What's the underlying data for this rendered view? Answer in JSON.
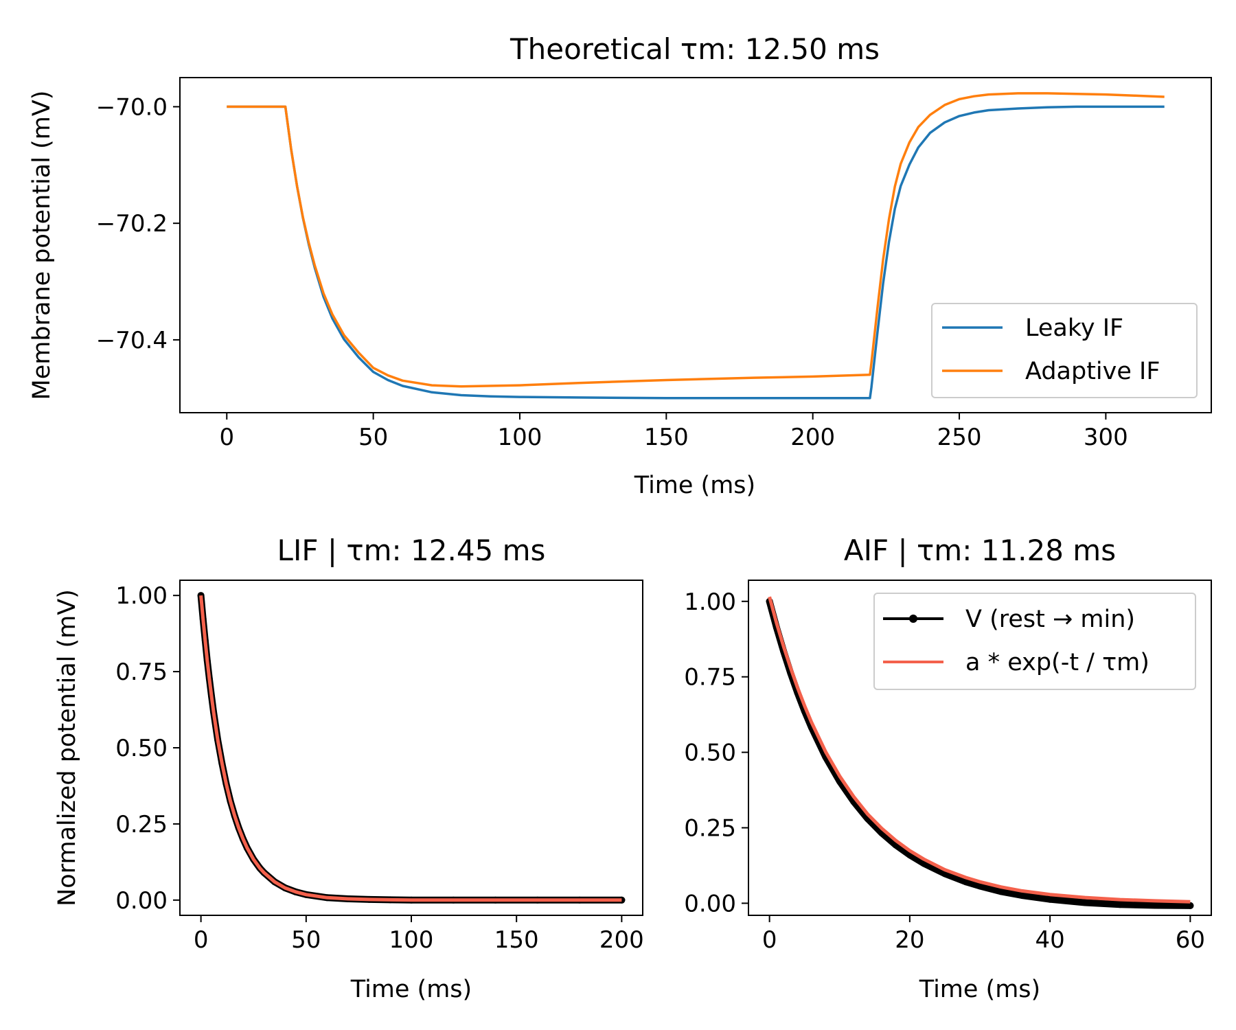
{
  "colors": {
    "lif": "#1f77b4",
    "aif": "#ff7f0e",
    "v_data": "#000000",
    "fit": "#f4614c"
  },
  "chart_data": [
    {
      "type": "line",
      "title": "Theoretical τm: 12.50 ms",
      "xlabel": "Time (ms)",
      "ylabel": "Membrane potential (mV)",
      "xlim": [
        -16,
        336
      ],
      "ylim": [
        -70.525,
        -69.95
      ],
      "xticks": [
        0,
        50,
        100,
        150,
        200,
        250,
        300
      ],
      "xtick_labels": [
        "0",
        "50",
        "100",
        "150",
        "200",
        "250",
        "300"
      ],
      "yticks": [
        -70.0,
        -70.2,
        -70.4
      ],
      "ytick_labels": [
        "−70.0",
        "−70.2",
        "−70.4"
      ],
      "grid": false,
      "legend": "lower-right",
      "series": [
        {
          "name": "Leaky IF",
          "color": "#1f77b4",
          "x": [
            0,
            20,
            22,
            24,
            26,
            28,
            30,
            33,
            36,
            40,
            45,
            50,
            55,
            60,
            70,
            80,
            90,
            100,
            120,
            150,
            180,
            200,
            219.5,
            220,
            222,
            224,
            226,
            228,
            230,
            233,
            236,
            240,
            245,
            250,
            255,
            260,
            270,
            280,
            290,
            300,
            320
          ],
          "values": [
            -70.0,
            -70.0,
            -70.074,
            -70.137,
            -70.191,
            -70.237,
            -70.276,
            -70.326,
            -70.363,
            -70.399,
            -70.43,
            -70.455,
            -70.469,
            -70.479,
            -70.49,
            -70.495,
            -70.497,
            -70.498,
            -70.499,
            -70.5,
            -70.5,
            -70.5,
            -70.5,
            -70.482,
            -70.39,
            -70.303,
            -70.232,
            -70.175,
            -70.136,
            -70.099,
            -70.07,
            -70.045,
            -70.027,
            -70.016,
            -70.01,
            -70.006,
            -70.003,
            -70.001,
            -70.0,
            -70.0,
            -70.0
          ]
        },
        {
          "name": "Adaptive IF",
          "color": "#ff7f0e",
          "x": [
            0,
            20,
            22,
            24,
            26,
            28,
            30,
            33,
            36,
            40,
            45,
            50,
            55,
            60,
            70,
            80,
            100,
            120,
            150,
            180,
            200,
            219.5,
            220,
            222,
            224,
            226,
            228,
            230,
            233,
            236,
            240,
            245,
            250,
            255,
            260,
            270,
            280,
            290,
            300,
            310,
            320
          ],
          "values": [
            -70.0,
            -70.0,
            -70.074,
            -70.137,
            -70.19,
            -70.234,
            -70.272,
            -70.32,
            -70.356,
            -70.392,
            -70.422,
            -70.448,
            -70.461,
            -70.47,
            -70.478,
            -70.48,
            -70.478,
            -70.474,
            -70.469,
            -70.465,
            -70.463,
            -70.46,
            -70.44,
            -70.348,
            -70.262,
            -70.193,
            -70.137,
            -70.098,
            -70.061,
            -70.035,
            -70.014,
            -69.997,
            -69.987,
            -69.982,
            -69.979,
            -69.977,
            -69.977,
            -69.978,
            -69.979,
            -69.981,
            -69.983
          ]
        }
      ]
    },
    {
      "type": "line",
      "title": "LIF | τm: 12.45 ms",
      "xlabel": "Time (ms)",
      "ylabel": "Normalized potential (mV)",
      "xlim": [
        -10,
        210
      ],
      "ylim": [
        -0.05,
        1.05
      ],
      "xticks": [
        0,
        50,
        100,
        150,
        200
      ],
      "xtick_labels": [
        "0",
        "50",
        "100",
        "150",
        "200"
      ],
      "yticks": [
        1.0,
        0.75,
        0.5,
        0.25,
        0.0
      ],
      "ytick_labels": [
        "1.00",
        "0.75",
        "0.50",
        "0.25",
        "0.00"
      ],
      "grid": false,
      "series": [
        {
          "name": "V (rest → min)",
          "color": "#000000",
          "marker": "dot",
          "x": [
            0,
            1,
            2,
            3,
            4,
            5,
            6,
            8,
            10,
            12,
            14,
            16,
            18,
            20,
            22,
            25,
            28,
            30,
            35,
            40,
            45,
            50,
            60,
            70,
            80,
            90,
            100,
            120,
            140,
            160,
            180,
            200
          ],
          "values": [
            1.0,
            0.923,
            0.852,
            0.786,
            0.726,
            0.67,
            0.618,
            0.526,
            0.449,
            0.382,
            0.325,
            0.277,
            0.236,
            0.201,
            0.171,
            0.134,
            0.105,
            0.09,
            0.06,
            0.04,
            0.027,
            0.018,
            0.008,
            0.004,
            0.002,
            0.001,
            0.0,
            0.0,
            0.0,
            0.0,
            0.0,
            0.0
          ]
        },
        {
          "name": "a * exp(-t / τm)",
          "color": "#f4614c",
          "x": [
            0,
            1,
            2,
            3,
            4,
            5,
            6,
            8,
            10,
            12,
            14,
            16,
            18,
            20,
            22,
            25,
            28,
            30,
            35,
            40,
            45,
            50,
            60,
            70,
            80,
            90,
            100,
            120,
            140,
            160,
            180,
            200
          ],
          "values": [
            1.0,
            0.923,
            0.852,
            0.786,
            0.726,
            0.67,
            0.618,
            0.526,
            0.449,
            0.382,
            0.325,
            0.277,
            0.236,
            0.201,
            0.171,
            0.134,
            0.105,
            0.09,
            0.06,
            0.04,
            0.027,
            0.018,
            0.008,
            0.004,
            0.002,
            0.001,
            0.0,
            0.0,
            0.0,
            0.0,
            0.0,
            0.0
          ]
        }
      ]
    },
    {
      "type": "line",
      "title": "AIF | τm: 11.28 ms",
      "xlabel": "Time (ms)",
      "ylabel": "",
      "xlim": [
        -3,
        63
      ],
      "ylim": [
        -0.04,
        1.07
      ],
      "xticks": [
        0,
        20,
        40,
        60
      ],
      "xtick_labels": [
        "0",
        "20",
        "40",
        "60"
      ],
      "yticks": [
        1.0,
        0.75,
        0.5,
        0.25,
        0.0
      ],
      "ytick_labels": [
        "1.00",
        "0.75",
        "0.50",
        "0.25",
        "0.00"
      ],
      "grid": false,
      "legend": "upper-right",
      "series": [
        {
          "name": "V (rest → min)",
          "color": "#000000",
          "marker": "dot",
          "x": [
            0,
            1,
            2,
            3,
            4,
            5,
            6,
            8,
            10,
            12,
            14,
            16,
            18,
            20,
            22,
            25,
            28,
            30,
            33,
            36,
            40,
            45,
            50,
            55,
            60
          ],
          "values": [
            1.0,
            0.914,
            0.835,
            0.763,
            0.697,
            0.637,
            0.582,
            0.485,
            0.404,
            0.337,
            0.28,
            0.233,
            0.193,
            0.16,
            0.132,
            0.098,
            0.071,
            0.057,
            0.039,
            0.026,
            0.013,
            0.002,
            -0.004,
            -0.007,
            -0.008
          ]
        },
        {
          "name": "a * exp(-t / τm)",
          "color": "#f4614c",
          "x": [
            0,
            1,
            2,
            3,
            4,
            5,
            6,
            8,
            10,
            12,
            14,
            16,
            18,
            20,
            22,
            25,
            28,
            30,
            33,
            36,
            40,
            45,
            50,
            55,
            60
          ],
          "values": [
            1.015,
            0.929,
            0.851,
            0.78,
            0.714,
            0.654,
            0.599,
            0.502,
            0.421,
            0.353,
            0.295,
            0.248,
            0.208,
            0.174,
            0.146,
            0.111,
            0.085,
            0.071,
            0.054,
            0.041,
            0.029,
            0.019,
            0.012,
            0.008,
            0.005
          ]
        }
      ]
    }
  ]
}
